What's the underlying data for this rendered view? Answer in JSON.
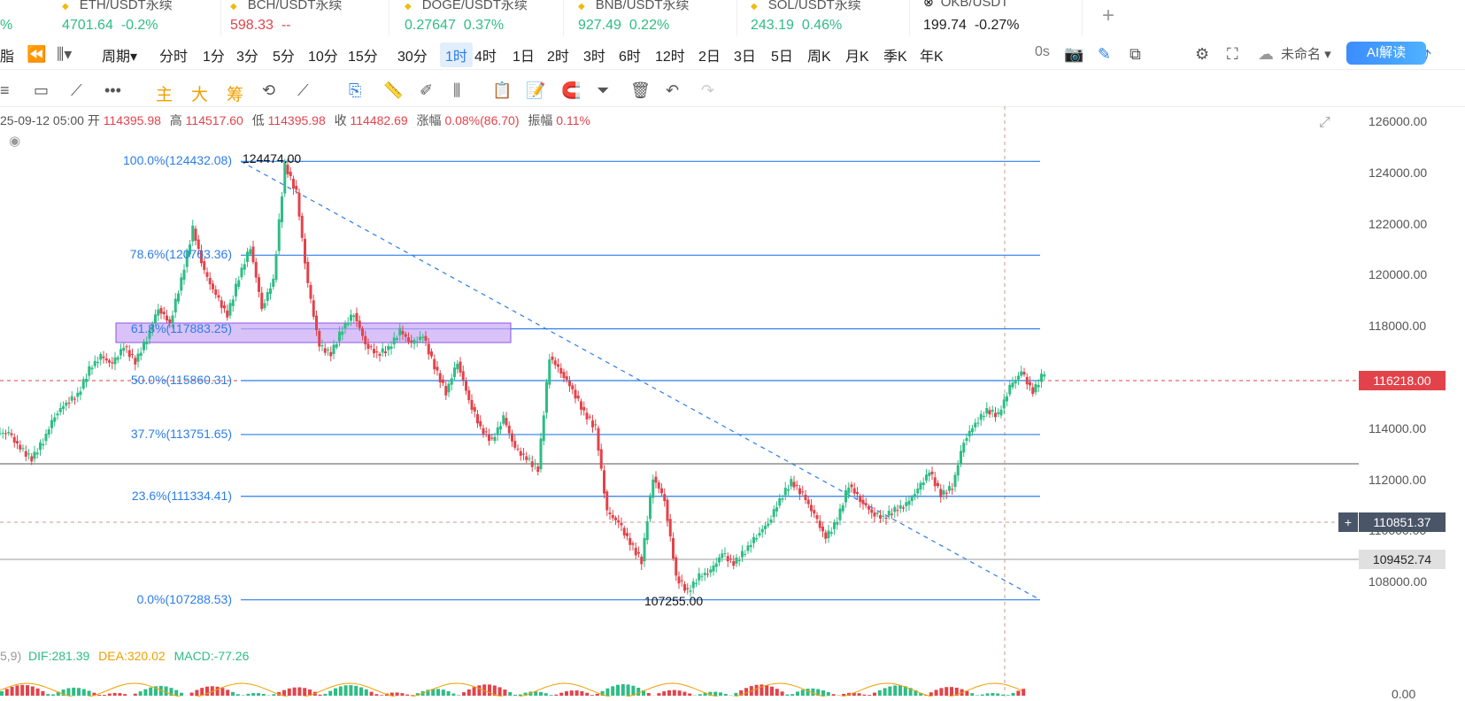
{
  "tickers": [
    {
      "name": "ETH/USDT永续",
      "price": "4701.64",
      "change": "-0.2%",
      "color": "green",
      "left": 60
    },
    {
      "name": "BCH/USDT永续",
      "price": "598.33",
      "change": "--",
      "color": "red",
      "left": 250
    },
    {
      "name": "DOGE/USDT永续",
      "price": "0.27647",
      "change": "0.37%",
      "color": "green",
      "left": 447
    },
    {
      "name": "BNB/USDT永续",
      "price": "927.49",
      "change": "0.22%",
      "color": "green",
      "left": 643
    },
    {
      "name": "SOL/USDT永续",
      "price": "243.19",
      "change": "0.46%",
      "color": "green",
      "left": 838
    },
    {
      "name": "OKB/USDT",
      "price": "199.74",
      "change": "-0.27%",
      "color": "dark",
      "left": 1033
    }
  ],
  "left_partial": {
    "top": "%",
    "toolbar": "脂"
  },
  "toolbar": {
    "period_label": "周期",
    "timeframes": [
      "分时",
      "1分",
      "3分",
      "5分",
      "10分",
      "15分",
      "30分",
      "1时",
      "4时",
      "1日",
      "2时",
      "3时",
      "6时",
      "12时",
      "2日",
      "3日",
      "5日",
      "周K",
      "月K",
      "季K",
      "年K"
    ],
    "active_timeframe": "1时",
    "countdown": "0s",
    "layout_name": "未命名",
    "ai_button": "AI解读"
  },
  "indicator_tools": {
    "main": "主",
    "big": "大",
    "chips": "筹"
  },
  "ohlc": {
    "date": "25-09-12 05:00",
    "open_label": "开",
    "open": "114395.98",
    "high_label": "高",
    "high": "114517.60",
    "low_label": "低",
    "low": "114395.98",
    "close_label": "收",
    "close": "114482.69",
    "change_label": "涨幅",
    "change": "0.08%(86.70)",
    "amp_label": "振幅",
    "amp": "0.11%"
  },
  "fib_levels": [
    {
      "label": "100.0%(124432.08)",
      "price": 124432.08
    },
    {
      "label": "78.6%(120763.36)",
      "price": 120763.36
    },
    {
      "label": "61.8%(117883.25)",
      "price": 117883.25
    },
    {
      "label": "50.0%(115860.31)",
      "price": 115860.31
    },
    {
      "label": "37.7%(113751.65)",
      "price": 113751.65
    },
    {
      "label": "23.6%(111334.41)",
      "price": 111334.41
    },
    {
      "label": "0.0%(107288.53)",
      "price": 107288.53
    }
  ],
  "annotations": {
    "high_marker": "124474.00",
    "low_marker": "107255.00"
  },
  "price_axis": [
    "126000.00",
    "124000.00",
    "122000.00",
    "120000.00",
    "118000.00",
    "116000.00",
    "114000.00",
    "112000.00",
    "110000.00",
    "108000.00"
  ],
  "macd_axis_zero": "0.00",
  "tags": {
    "last_price": "116218.00",
    "crosshair_price": "110851.37",
    "horizontal_line": "109452.74"
  },
  "macd": {
    "params": "5,9)",
    "dif": "DIF:281.39",
    "dea": "DEA:320.02",
    "macd": "MACD:-77.26"
  },
  "colors": {
    "up": "#2ebd85",
    "down": "#e2434b",
    "fib": "#2b7de9",
    "zone": "#c9a8f5",
    "macd_dea": "#f0a000"
  },
  "chart_data": {
    "type": "candlestick",
    "y_range": [
      106500,
      126500
    ],
    "close_series_approx": [
      113800,
      113200,
      112800,
      113500,
      114500,
      115000,
      115300,
      116300,
      116800,
      116500,
      117200,
      116600,
      117500,
      118700,
      118100,
      119800,
      121800,
      120100,
      119200,
      118400,
      119900,
      121100,
      118700,
      119800,
      124300,
      123200,
      119600,
      117200,
      116900,
      117900,
      118500,
      117300,
      116900,
      117100,
      117800,
      117300,
      117600,
      116400,
      115400,
      116600,
      115100,
      114000,
      113500,
      114400,
      113200,
      112800,
      112400,
      116800,
      116200,
      115500,
      114600,
      114000,
      110700,
      110300,
      109500,
      108800,
      112100,
      111200,
      108200,
      107600,
      108200,
      108400,
      109100,
      108700,
      109200,
      109800,
      110300,
      111200,
      111900,
      111400,
      110600,
      109700,
      110400,
      111800,
      111200,
      110700,
      110500,
      110800,
      111000,
      111600,
      112300,
      111400,
      111700,
      113500,
      114200,
      114700,
      114500,
      115600,
      116200,
      115400,
      116218
    ]
  }
}
